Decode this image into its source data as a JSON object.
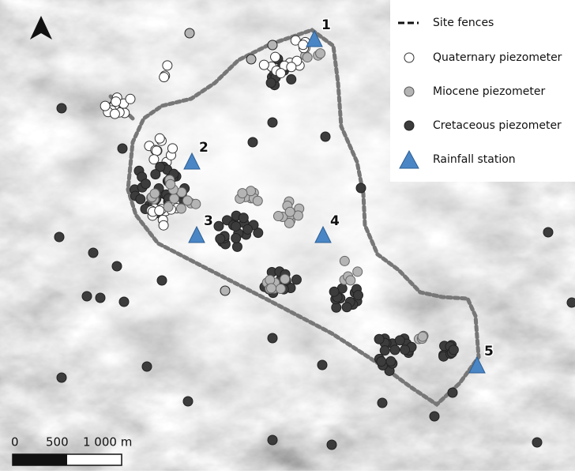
{
  "legend": {
    "items": [
      "Site fences",
      "Quaternary piezometer",
      "Miocene piezometer",
      "Cretaceous piezometer",
      "Rainfall station"
    ]
  },
  "stations": [
    "1",
    "2",
    "3",
    "4",
    "5"
  ],
  "scale_bar": [
    "0",
    "500",
    "1 000 m"
  ]
}
